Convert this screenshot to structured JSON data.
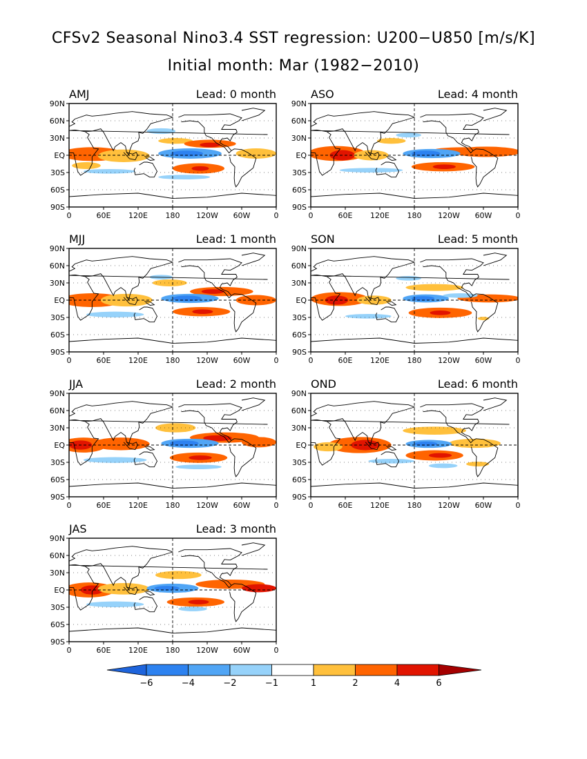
{
  "figure": {
    "title": "CFSv2 Seasonal Nino3.4 SST regression: U200−U850 [m/s/K]",
    "subtitle": "Initial month: Mar (1982−2010)"
  },
  "colors": {
    "background": "#ffffff",
    "axis": "#000000",
    "coast": "#000000",
    "scale": {
      "lt_-6": "#1e64dc",
      "-6_-4": "#2d82f0",
      "-4_-2": "#50a5f5",
      "-2_-1": "#96d2fa",
      "-1_1": "#ffffff",
      "1_2": "#ffc03c",
      "2_4": "#ff6400",
      "4_6": "#e11400",
      "gt_6": "#a50000"
    }
  },
  "chart_data": {
    "type": "heatmap",
    "units": "m/s/K",
    "x_ticks": [
      "0",
      "60E",
      "120E",
      "180",
      "120W",
      "60W",
      "0"
    ],
    "y_ticks": [
      "90N",
      "60N",
      "30N",
      "EQ",
      "30S",
      "60S",
      "90S"
    ],
    "xlim_deg_east": [
      0,
      360
    ],
    "ylim_deg_lat": [
      -90,
      90
    ],
    "dashed_reference_lines": [
      "EQ",
      "180"
    ],
    "colorbar": {
      "orientation": "horizontal",
      "tick_labels": [
        "−6",
        "−4",
        "−2",
        "−1",
        "1",
        "2",
        "4",
        "6"
      ],
      "levels": [
        -6,
        -4,
        -2,
        -1,
        1,
        2,
        4,
        6
      ]
    },
    "panels": [
      {
        "season": "AMJ",
        "lead": "Lead: 0 month",
        "features": [
          {
            "lon": 40,
            "lat": 2,
            "rlon": 55,
            "rlat": 12,
            "value": 2.6
          },
          {
            "lon": 95,
            "lat": -1,
            "rlon": 45,
            "rlat": 11,
            "value": 1.6
          },
          {
            "lon": 30,
            "lat": -18,
            "rlon": 25,
            "rlat": 6,
            "value": 1.5
          },
          {
            "lon": 185,
            "lat": 25,
            "rlon": 30,
            "rlat": 5,
            "value": 1.4
          },
          {
            "lon": 245,
            "lat": 20,
            "rlon": 45,
            "rlat": 7,
            "value": 3.2
          },
          {
            "lon": 245,
            "lat": 18,
            "rlon": 18,
            "rlat": 4,
            "value": 4.3
          },
          {
            "lon": 325,
            "lat": 3,
            "rlon": 35,
            "rlat": 9,
            "value": 1.6
          },
          {
            "lon": 225,
            "lat": -23,
            "rlon": 45,
            "rlat": 9,
            "value": 3.0
          },
          {
            "lon": 228,
            "lat": -23,
            "rlon": 15,
            "rlat": 4,
            "value": 4.2
          },
          {
            "lon": 210,
            "lat": 3,
            "rlon": 55,
            "rlat": 9,
            "value": -3.0
          },
          {
            "lon": 205,
            "lat": 3,
            "rlon": 28,
            "rlat": 5,
            "value": -4.4
          },
          {
            "lon": 160,
            "lat": 42,
            "rlon": 25,
            "rlat": 5,
            "value": -1.5
          },
          {
            "lon": 70,
            "lat": -28,
            "rlon": 45,
            "rlat": 4,
            "value": -1.5
          },
          {
            "lon": 200,
            "lat": -38,
            "rlon": 45,
            "rlat": 4,
            "value": -1.5
          }
        ]
      },
      {
        "season": "ASO",
        "lead": "Lead: 4 month",
        "features": [
          {
            "lon": 45,
            "lat": 3,
            "rlon": 50,
            "rlat": 13,
            "value": 3.0
          },
          {
            "lon": 55,
            "lat": 0,
            "rlon": 22,
            "rlat": 9,
            "value": 4.2
          },
          {
            "lon": 105,
            "lat": 0,
            "rlon": 30,
            "rlat": 9,
            "value": 1.6
          },
          {
            "lon": 140,
            "lat": 25,
            "rlon": 25,
            "rlat": 5,
            "value": 1.5
          },
          {
            "lon": 305,
            "lat": 6,
            "rlon": 60,
            "rlat": 9,
            "value": 3.0
          },
          {
            "lon": 265,
            "lat": 8,
            "rlon": 55,
            "rlat": 6,
            "value": 2.1
          },
          {
            "lon": 230,
            "lat": -20,
            "rlon": 55,
            "rlat": 8,
            "value": 2.8
          },
          {
            "lon": 232,
            "lat": -20,
            "rlon": 20,
            "rlat": 4,
            "value": 4.2
          },
          {
            "lon": 210,
            "lat": 3,
            "rlon": 50,
            "rlat": 8,
            "value": -3.0
          },
          {
            "lon": 200,
            "lat": 3,
            "rlon": 25,
            "rlat": 5,
            "value": -4.4
          },
          {
            "lon": 105,
            "lat": -26,
            "rlon": 55,
            "rlat": 4,
            "value": -1.5
          },
          {
            "lon": 170,
            "lat": 35,
            "rlon": 22,
            "rlat": 4,
            "value": -1.4
          }
        ]
      },
      {
        "season": "MJJ",
        "lead": "Lead: 1 month",
        "features": [
          {
            "lon": 40,
            "lat": 0,
            "rlon": 55,
            "rlat": 12,
            "value": 2.6
          },
          {
            "lon": 100,
            "lat": 0,
            "rlon": 45,
            "rlat": 11,
            "value": 1.6
          },
          {
            "lon": 175,
            "lat": 30,
            "rlon": 30,
            "rlat": 6,
            "value": 1.5
          },
          {
            "lon": 265,
            "lat": 15,
            "rlon": 55,
            "rlat": 8,
            "value": 3.0
          },
          {
            "lon": 250,
            "lat": 15,
            "rlon": 20,
            "rlat": 4,
            "value": 4.3
          },
          {
            "lon": 325,
            "lat": 0,
            "rlon": 35,
            "rlat": 9,
            "value": 2.3
          },
          {
            "lon": 230,
            "lat": -20,
            "rlon": 50,
            "rlat": 8,
            "value": 3.0
          },
          {
            "lon": 232,
            "lat": -20,
            "rlon": 18,
            "rlat": 4,
            "value": 4.3
          },
          {
            "lon": 210,
            "lat": 3,
            "rlon": 50,
            "rlat": 8,
            "value": -3.0
          },
          {
            "lon": 205,
            "lat": 3,
            "rlon": 25,
            "rlat": 5,
            "value": -4.3
          },
          {
            "lon": 80,
            "lat": -25,
            "rlon": 50,
            "rlat": 5,
            "value": -1.5
          },
          {
            "lon": 160,
            "lat": 40,
            "rlon": 20,
            "rlat": 4,
            "value": -1.5
          }
        ]
      },
      {
        "season": "SON",
        "lead": "Lead: 5 month",
        "features": [
          {
            "lon": 50,
            "lat": 2,
            "rlon": 50,
            "rlat": 12,
            "value": 3.0
          },
          {
            "lon": 45,
            "lat": 0,
            "rlon": 20,
            "rlat": 8,
            "value": 4.2
          },
          {
            "lon": 110,
            "lat": 0,
            "rlon": 30,
            "rlat": 8,
            "value": 1.6
          },
          {
            "lon": 215,
            "lat": 22,
            "rlon": 50,
            "rlat": 6,
            "value": 1.6
          },
          {
            "lon": 310,
            "lat": 3,
            "rlon": 55,
            "rlat": 7,
            "value": 2.9
          },
          {
            "lon": 225,
            "lat": -22,
            "rlon": 55,
            "rlat": 9,
            "value": 2.8
          },
          {
            "lon": 225,
            "lat": -22,
            "rlon": 18,
            "rlat": 4,
            "value": 4.2
          },
          {
            "lon": 300,
            "lat": -32,
            "rlon": 10,
            "rlat": 3,
            "value": 1.5
          },
          {
            "lon": 200,
            "lat": 3,
            "rlon": 40,
            "rlat": 7,
            "value": -3.0
          },
          {
            "lon": 195,
            "lat": 3,
            "rlon": 20,
            "rlat": 4,
            "value": -4.3
          },
          {
            "lon": 260,
            "lat": 8,
            "rlon": 30,
            "rlat": 4,
            "value": -1.4
          },
          {
            "lon": 100,
            "lat": -28,
            "rlon": 40,
            "rlat": 4,
            "value": -1.5
          },
          {
            "lon": 170,
            "lat": 38,
            "rlon": 22,
            "rlat": 4,
            "value": -1.4
          }
        ]
      },
      {
        "season": "JJA",
        "lead": "Lead: 2 month",
        "features": [
          {
            "lon": 25,
            "lat": 0,
            "rlon": 40,
            "rlat": 13,
            "value": 3.5
          },
          {
            "lon": 20,
            "lat": 0,
            "rlon": 20,
            "rlat": 8,
            "value": 5.0
          },
          {
            "lon": 90,
            "lat": 2,
            "rlon": 50,
            "rlat": 11,
            "value": 2.2
          },
          {
            "lon": 185,
            "lat": 30,
            "rlon": 35,
            "rlat": 8,
            "value": 1.6
          },
          {
            "lon": 270,
            "lat": 13,
            "rlon": 60,
            "rlat": 9,
            "value": 3.0
          },
          {
            "lon": 258,
            "lat": 12,
            "rlon": 25,
            "rlat": 5,
            "value": 4.3
          },
          {
            "lon": 330,
            "lat": 5,
            "rlon": 30,
            "rlat": 9,
            "value": 2.8
          },
          {
            "lon": 225,
            "lat": -22,
            "rlon": 50,
            "rlat": 9,
            "value": 3.0
          },
          {
            "lon": 228,
            "lat": -22,
            "rlon": 20,
            "rlat": 4,
            "value": 4.4
          },
          {
            "lon": 210,
            "lat": 3,
            "rlon": 50,
            "rlat": 8,
            "value": -3.0
          },
          {
            "lon": 200,
            "lat": 3,
            "rlon": 25,
            "rlat": 5,
            "value": -4.4
          },
          {
            "lon": 80,
            "lat": -26,
            "rlon": 55,
            "rlat": 5,
            "value": -1.5
          },
          {
            "lon": 225,
            "lat": -38,
            "rlon": 40,
            "rlat": 4,
            "value": -1.5
          }
        ]
      },
      {
        "season": "OND",
        "lead": "Lead: 6 month",
        "features": [
          {
            "lon": 85,
            "lat": 0,
            "rlon": 55,
            "rlat": 14,
            "value": 3.0
          },
          {
            "lon": 95,
            "lat": 0,
            "rlon": 25,
            "rlat": 9,
            "value": 4.2
          },
          {
            "lon": 30,
            "lat": -3,
            "rlon": 25,
            "rlat": 8,
            "value": 1.6
          },
          {
            "lon": 215,
            "lat": 25,
            "rlon": 55,
            "rlat": 7,
            "value": 1.6
          },
          {
            "lon": 285,
            "lat": 3,
            "rlon": 45,
            "rlat": 8,
            "value": 1.6
          },
          {
            "lon": 215,
            "lat": -18,
            "rlon": 50,
            "rlat": 9,
            "value": 2.9
          },
          {
            "lon": 225,
            "lat": -18,
            "rlon": 20,
            "rlat": 4,
            "value": 4.2
          },
          {
            "lon": 290,
            "lat": -33,
            "rlon": 20,
            "rlat": 4,
            "value": 1.5
          },
          {
            "lon": 205,
            "lat": 2,
            "rlon": 40,
            "rlat": 7,
            "value": -3.0
          },
          {
            "lon": 200,
            "lat": 2,
            "rlon": 20,
            "rlat": 4,
            "value": -4.2
          },
          {
            "lon": 140,
            "lat": -28,
            "rlon": 40,
            "rlat": 4,
            "value": -1.5
          },
          {
            "lon": 230,
            "lat": -36,
            "rlon": 25,
            "rlat": 4,
            "value": -1.5
          }
        ]
      },
      {
        "season": "JAS",
        "lead": "Lead: 3 month",
        "features": [
          {
            "lon": 35,
            "lat": 0,
            "rlon": 45,
            "rlat": 13,
            "value": 3.2
          },
          {
            "lon": 40,
            "lat": 0,
            "rlon": 20,
            "rlat": 8,
            "value": 4.6
          },
          {
            "lon": 95,
            "lat": 2,
            "rlon": 45,
            "rlat": 10,
            "value": 1.6
          },
          {
            "lon": 190,
            "lat": 26,
            "rlon": 40,
            "rlat": 7,
            "value": 1.6
          },
          {
            "lon": 280,
            "lat": 10,
            "rlon": 60,
            "rlat": 8,
            "value": 3.0
          },
          {
            "lon": 330,
            "lat": 3,
            "rlon": 30,
            "rlat": 7,
            "value": 4.2
          },
          {
            "lon": 220,
            "lat": -21,
            "rlon": 50,
            "rlat": 8,
            "value": 3.0
          },
          {
            "lon": 225,
            "lat": -21,
            "rlon": 18,
            "rlat": 4,
            "value": 4.3
          },
          {
            "lon": 180,
            "lat": 3,
            "rlon": 45,
            "rlat": 8,
            "value": -3.0
          },
          {
            "lon": 170,
            "lat": 3,
            "rlon": 22,
            "rlat": 4,
            "value": -4.3
          },
          {
            "lon": 80,
            "lat": -25,
            "rlon": 50,
            "rlat": 5,
            "value": -1.5
          },
          {
            "lon": 215,
            "lat": -33,
            "rlon": 25,
            "rlat": 4,
            "value": -1.5
          }
        ]
      }
    ]
  }
}
